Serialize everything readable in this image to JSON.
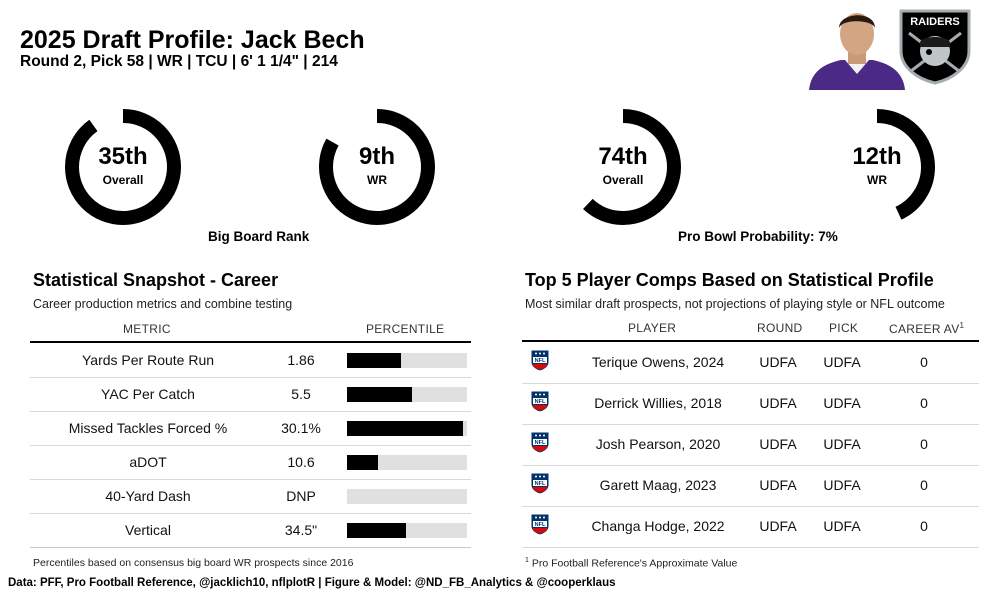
{
  "header": {
    "title": "2025 Draft Profile: Jack Bech",
    "subtitle": "Round 2, Pick 58 | WR | TCU | 6' 1 1/4\" | 214"
  },
  "team_logo_text": "RAIDERS",
  "colors": {
    "ring": "#000000",
    "bar_fill": "#000000",
    "bar_bg": "#e0e0e0",
    "nfl_blue": "#013369",
    "nfl_red": "#d50a0a"
  },
  "big_board": {
    "caption": "Big Board Rank",
    "overall": {
      "value": "35th",
      "label": "Overall",
      "fraction": 0.9
    },
    "position": {
      "value": "9th",
      "label": "WR",
      "fraction": 0.83
    }
  },
  "pro_bowl": {
    "caption": "Pro Bowl Probability: 7%",
    "overall": {
      "value": "74th",
      "label": "Overall",
      "fraction": 0.62
    },
    "position": {
      "value": "12th",
      "label": "WR",
      "fraction": 0.43
    }
  },
  "snapshot": {
    "title": "Statistical Snapshot - Career",
    "subtitle": "Career production metrics and combine testing",
    "columns": {
      "metric": "METRIC",
      "percentile": "PERCENTILE"
    },
    "rows": [
      {
        "metric": "Yards Per Route Run",
        "value": "1.86",
        "percentile": 0.45
      },
      {
        "metric": "YAC Per Catch",
        "value": "5.5",
        "percentile": 0.54
      },
      {
        "metric": "Missed Tackles Forced %",
        "value": "30.1%",
        "percentile": 0.97
      },
      {
        "metric": "aDOT",
        "value": "10.6",
        "percentile": 0.26
      },
      {
        "metric": "40-Yard Dash",
        "value": "DNP",
        "percentile": 0
      },
      {
        "metric": "Vertical",
        "value": "34.5\"",
        "percentile": 0.49
      }
    ],
    "footnote": "Percentiles based on consensus big board WR prospects since 2016"
  },
  "comps": {
    "title": "Top 5 Player Comps Based on Statistical Profile",
    "subtitle": "Most similar draft prospects, not projections of playing style or NFL outcome",
    "columns": {
      "player": "PLAYER",
      "round": "ROUND",
      "pick": "PICK",
      "career_av": "CAREER AV",
      "career_av_sup": "1"
    },
    "rows": [
      {
        "player": "Terique Owens, 2024",
        "round": "UDFA",
        "pick": "UDFA",
        "av": "0"
      },
      {
        "player": "Derrick Willies, 2018",
        "round": "UDFA",
        "pick": "UDFA",
        "av": "0"
      },
      {
        "player": "Josh Pearson, 2020",
        "round": "UDFA",
        "pick": "UDFA",
        "av": "0"
      },
      {
        "player": "Garett Maag, 2023",
        "round": "UDFA",
        "pick": "UDFA",
        "av": "0"
      },
      {
        "player": "Changa Hodge, 2022",
        "round": "UDFA",
        "pick": "UDFA",
        "av": "0"
      }
    ],
    "footnote_sup": "1",
    "footnote": "Pro Football Reference's Approximate Value"
  },
  "source": "Data: PFF, Pro Football Reference, @jacklich10, nflplotR | Figure & Model: @ND_FB_Analytics & @cooperklaus"
}
